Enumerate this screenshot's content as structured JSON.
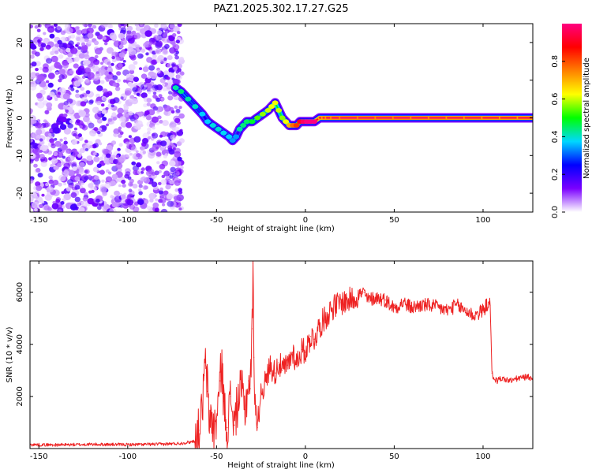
{
  "chart_data": [
    {
      "type": "heatmap",
      "title": "PAZ1.2025.302.17.27.G25",
      "xlabel": "Height of straight line (km)",
      "ylabel": "Frequency (Hz)",
      "xlim": [
        -155,
        128
      ],
      "ylim": [
        -25,
        25
      ],
      "xticks": [
        -150,
        -100,
        -50,
        0,
        50,
        100
      ],
      "xtick_labels": [
        "-150",
        "-100",
        "-50",
        "0",
        "50",
        "100"
      ],
      "yticks": [
        -20,
        -10,
        0,
        10,
        20
      ],
      "ytick_labels": [
        "-20",
        "-10",
        "0",
        "10",
        "20"
      ],
      "noise_region_x": [
        -155,
        -73
      ],
      "ridge": {
        "x": [
          -73,
          -70,
          -66,
          -62,
          -58,
          -55,
          -52,
          -49,
          -46,
          -43,
          -41,
          -39,
          -37,
          -35,
          -33,
          -30,
          -27,
          -24,
          -21,
          -19,
          -17,
          -15,
          -13,
          -11,
          -9,
          -7,
          -5,
          -3,
          -1,
          1,
          3,
          5,
          8,
          10,
          12,
          15,
          20,
          30,
          40,
          50,
          60,
          70,
          80,
          90,
          100,
          110,
          120,
          128
        ],
        "y": [
          8,
          7,
          5,
          3,
          1,
          -1,
          -2,
          -3,
          -4,
          -5,
          -6,
          -5,
          -3,
          -2,
          -1,
          -1,
          0,
          1,
          2,
          3,
          4,
          2,
          0,
          -1,
          -2,
          -2,
          -2,
          -1,
          -1,
          -1,
          -1,
          -1,
          0,
          0,
          0,
          0,
          0,
          0,
          0,
          0,
          0,
          0,
          0,
          0,
          0,
          0,
          0,
          0
        ],
        "amplitude": [
          0.3,
          0.32,
          0.3,
          0.28,
          0.25,
          0.25,
          0.27,
          0.28,
          0.26,
          0.25,
          0.22,
          0.22,
          0.3,
          0.32,
          0.33,
          0.36,
          0.42,
          0.45,
          0.48,
          0.5,
          0.5,
          0.48,
          0.45,
          0.5,
          0.58,
          0.65,
          0.7,
          0.8,
          0.85,
          0.88,
          0.9,
          0.92,
          0.94,
          0.95,
          0.96,
          0.97,
          0.98,
          0.98,
          0.98,
          0.98,
          0.97,
          0.97,
          0.96,
          0.96,
          0.95,
          0.95,
          0.95,
          0.95
        ]
      },
      "colorbar": {
        "label": "Normalized spectral amplitude",
        "range": [
          0,
          1
        ],
        "ticks": [
          0.0,
          0.2,
          0.4,
          0.6,
          0.8
        ],
        "tick_labels": [
          "0.0",
          "0.2",
          "0.4",
          "0.6",
          "0.8"
        ],
        "colors": [
          "#ffffff",
          "#7b00ff",
          "#0000ff",
          "#00d8ff",
          "#00ff00",
          "#ffff00",
          "#ff8000",
          "#ff0000",
          "#ff0080"
        ]
      }
    },
    {
      "type": "line",
      "xlabel": "Height of straight line (km)",
      "ylabel": "SNR (10 * v/v)",
      "xlim": [
        -155,
        128
      ],
      "ylim": [
        0,
        7200
      ],
      "xticks": [
        -150,
        -100,
        -50,
        0,
        50,
        100
      ],
      "xtick_labels": [
        "-150",
        "-100",
        "-50",
        "0",
        "50",
        "100"
      ],
      "yticks": [
        2000,
        4000,
        6000
      ],
      "ytick_labels": [
        "2000",
        "4000",
        "6000"
      ],
      "color": "#ee2222",
      "series": [
        {
          "name": "SNR",
          "x": [
            -155,
            -140,
            -120,
            -100,
            -80,
            -70,
            -65,
            -62,
            -60,
            -58,
            -57,
            -56,
            -55,
            -54,
            -53,
            -52,
            -50,
            -48,
            -47,
            -46,
            -45,
            -44,
            -42,
            -40,
            -38,
            -36,
            -34,
            -33,
            -32,
            -31,
            -30,
            -29.5,
            -29,
            -28,
            -27,
            -25,
            -22,
            -20,
            -17,
            -15,
            -13,
            -10,
            -7,
            -5,
            -2,
            0,
            3,
            5,
            8,
            10,
            15,
            20,
            25,
            30,
            33,
            35,
            40,
            45,
            50,
            55,
            60,
            65,
            70,
            75,
            80,
            85,
            90,
            95,
            100,
            103,
            104,
            105,
            106,
            108,
            110,
            115,
            120,
            125,
            128
          ],
          "y": [
            150,
            140,
            160,
            150,
            170,
            200,
            250,
            300,
            700,
            1500,
            2800,
            3200,
            2200,
            900,
            1500,
            600,
            1100,
            2600,
            3300,
            1800,
            1200,
            800,
            2000,
            900,
            1800,
            2300,
            1500,
            2000,
            2600,
            2300,
            4600,
            7100,
            3500,
            1600,
            800,
            2200,
            2600,
            3200,
            2900,
            3300,
            3000,
            3200,
            3700,
            3300,
            3800,
            3700,
            4300,
            4200,
            4700,
            4900,
            5400,
            5600,
            5700,
            5900,
            6000,
            5700,
            5800,
            5700,
            5400,
            5600,
            5400,
            5500,
            5500,
            5400,
            5300,
            5500,
            5300,
            5100,
            5300,
            5600,
            5500,
            2900,
            2700,
            2600,
            2700,
            2600,
            2700,
            2750,
            2700
          ]
        }
      ]
    }
  ]
}
